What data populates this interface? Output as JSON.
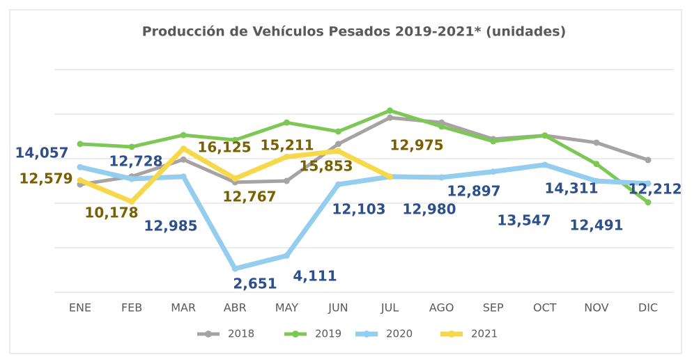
{
  "chart_data": {
    "type": "line",
    "title": "Producción de Vehículos Pesados 2019-2021* (unidades)",
    "categories": [
      "ENE",
      "FEB",
      "MAR",
      "ABR",
      "MAY",
      "JUN",
      "JUL",
      "AGO",
      "SEP",
      "OCT",
      "NOV",
      "DIC"
    ],
    "ylim": [
      0,
      25000
    ],
    "yticks": [
      0,
      5000,
      10000,
      15000,
      20000,
      25000
    ],
    "grid": true,
    "legend": "bottom",
    "series": [
      {
        "name": "2018",
        "color": "#a8a3a3",
        "values": [
          12100,
          13000,
          14900,
          12350,
          12500,
          16650,
          19600,
          19050,
          17200,
          17600,
          16800,
          14850
        ]
      },
      {
        "name": "2019",
        "color": "#7dc855",
        "values": [
          16650,
          16330,
          17650,
          17100,
          19050,
          18050,
          20400,
          18600,
          16950,
          17600,
          14400,
          10100
        ]
      },
      {
        "name": "2020",
        "color": "#94cdee",
        "label_color": "#2e4f8a",
        "values": [
          14057,
          12728,
          12985,
          2651,
          4111,
          12103,
          12980,
          12897,
          13547,
          14311,
          12491,
          12212
        ],
        "value_labels": [
          "14,057",
          "12,728",
          "12,985",
          "2,651",
          "4,111",
          "12,103",
          "12,980",
          "12,897",
          "13,547",
          "14,311",
          "12,491",
          "12,212"
        ]
      },
      {
        "name": "2021",
        "color": "#f5d94a",
        "label_color": "#7a5f00",
        "values": [
          12579,
          10178,
          16125,
          12767,
          15211,
          15853,
          12975,
          null,
          null,
          null,
          null,
          null
        ],
        "value_labels": [
          "12,579",
          "10,178",
          "16,125",
          "12,767",
          "15,211",
          "15,853",
          "12,975",
          null,
          null,
          null,
          null,
          null
        ]
      }
    ]
  }
}
